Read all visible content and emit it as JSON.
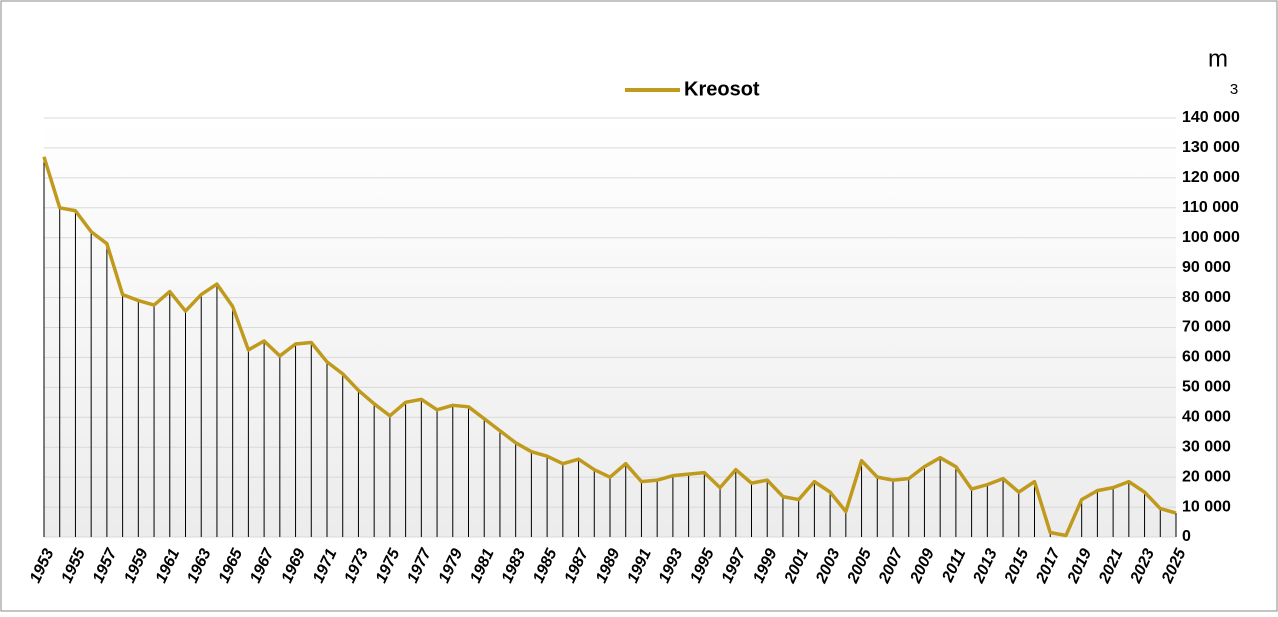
{
  "chart_data": {
    "type": "line",
    "legend_position": "top",
    "unit": "m",
    "unit_superscript": "3",
    "categories": [
      "1953",
      null,
      "1955",
      null,
      "1957",
      null,
      "1959",
      null,
      "1961",
      null,
      "1963",
      null,
      "1965",
      null,
      "1967",
      null,
      "1969",
      null,
      "1971",
      null,
      "1973",
      null,
      "1975",
      null,
      "1977",
      null,
      "1979",
      null,
      "1981",
      null,
      "1983",
      null,
      "1985",
      null,
      "1987",
      null,
      "1989",
      null,
      "1991",
      null,
      "1993",
      null,
      "1995",
      null,
      "1997",
      null,
      "1999",
      null,
      "2001",
      null,
      "2003",
      null,
      "2005",
      null,
      "2007",
      null,
      "2009",
      null,
      "2011",
      null,
      "2013",
      null,
      "2015",
      null,
      "2017",
      null,
      "2019",
      null,
      "2021",
      null,
      "2023",
      null,
      "2025"
    ],
    "series": [
      {
        "name": "Kreosot",
        "color": "#c09a1c",
        "values": [
          127000,
          110000,
          109000,
          102000,
          98000,
          81000,
          79000,
          77500,
          82000,
          75500,
          81000,
          84500,
          77000,
          62500,
          65500,
          60500,
          64500,
          65000,
          58500,
          54500,
          49000,
          44500,
          40500,
          45000,
          46000,
          42500,
          44000,
          43500,
          39500,
          35500,
          31500,
          28500,
          27000,
          24500,
          26000,
          22500,
          20000,
          24500,
          18500,
          19000,
          20500,
          21000,
          21500,
          16500,
          22500,
          18000,
          19000,
          13500,
          12500,
          18500,
          15000,
          8500,
          25500,
          20000,
          19000,
          19500,
          23500,
          26500,
          23500,
          16000,
          17500,
          19500,
          15000,
          18500,
          1500,
          500,
          12500,
          15500,
          16500,
          18500,
          15000,
          9500,
          8000
        ]
      }
    ],
    "ylim": [
      0,
      140000
    ],
    "yticks": [
      0,
      {
        "value": 10000,
        "label": "10 000"
      },
      {
        "value": 20000,
        "label": "20 000"
      },
      {
        "value": 30000,
        "label": "30 000"
      },
      {
        "value": 40000,
        "label": "40 000"
      },
      {
        "value": 50000,
        "label": "50 000"
      },
      {
        "value": 60000,
        "label": "60 000"
      },
      {
        "value": 70000,
        "label": "70 000"
      },
      {
        "value": 80000,
        "label": "80 000"
      },
      {
        "value": 90000,
        "label": "90 000"
      },
      {
        "value": 100000,
        "label": "100 000"
      },
      {
        "value": 110000,
        "label": "110 000"
      },
      {
        "value": 120000,
        "label": "120 000"
      },
      {
        "value": 130000,
        "label": "130 000"
      },
      {
        "value": 140000,
        "label": "140 000"
      }
    ],
    "grid": true,
    "drop_lines": true
  }
}
